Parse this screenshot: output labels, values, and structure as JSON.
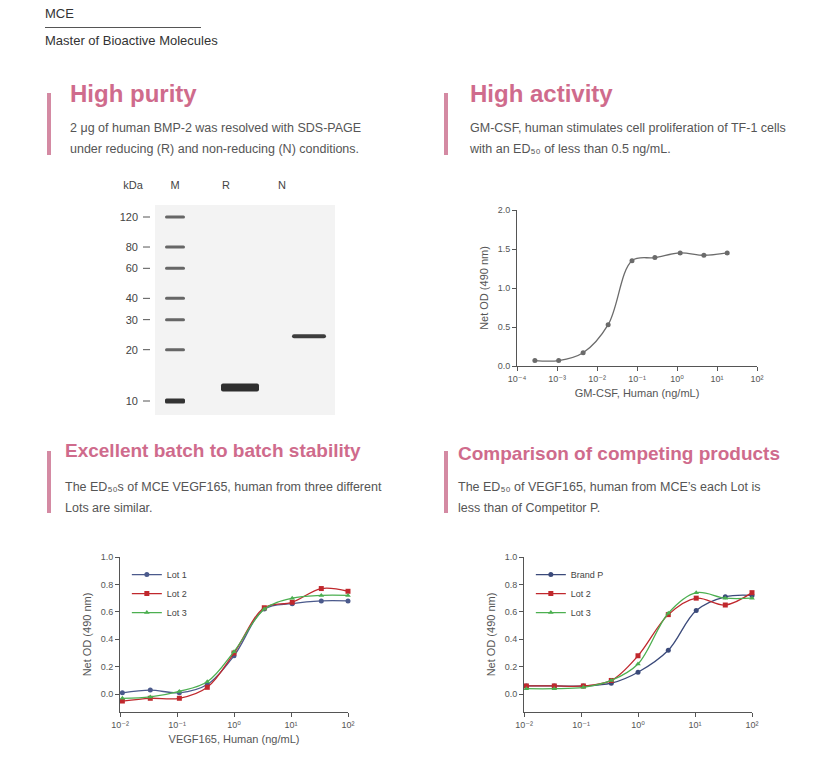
{
  "header": {
    "brand": "MCE",
    "tagline": "Master of Bioactive Molecules"
  },
  "gel_panel": {
    "title": "High purity",
    "subtitle": [
      "2 μg of human BMP-2  was resolved with SDS-PAGE",
      "under reducing (R) and non-reducing (N) conditions."
    ],
    "gel": {
      "axis_label": "kDa",
      "lanes": [
        "M",
        "R",
        "N"
      ],
      "ladder": [
        120,
        80,
        60,
        40,
        30,
        20,
        10
      ],
      "bands": [
        {
          "lane": "R",
          "kDa": 12
        },
        {
          "lane": "N",
          "kDa": 24
        }
      ]
    }
  },
  "chart_data": [
    {
      "type": "line",
      "title": "High activity",
      "subtitle": [
        "GM-CSF, human stimulates cell proliferation of TF-1 cells",
        "with an ED₅₀ of less than 0.5 ng/mL."
      ],
      "x_label": "GM-CSF, Human (ng/mL)",
      "y_label": "Net OD (490 nm)",
      "log": "x",
      "grid": false,
      "xlim": [
        0.0001,
        100
      ],
      "xticks": [
        {
          "value": 0.0001,
          "label": "10⁻⁴"
        },
        {
          "value": 0.001,
          "label": "10⁻³"
        },
        {
          "value": 0.01,
          "label": "10⁻²"
        },
        {
          "value": 0.1,
          "label": "10⁻¹"
        },
        {
          "value": 1,
          "label": "10⁰"
        },
        {
          "value": 10,
          "label": "10¹"
        },
        {
          "value": 100,
          "label": "10²"
        }
      ],
      "ylim": [
        0,
        2
      ],
      "yticks": [
        {
          "value": 0,
          "label": "0.0"
        },
        0.5,
        {
          "value": 1,
          "label": "1.0"
        },
        1.5,
        {
          "value": 2,
          "label": "2.0"
        }
      ],
      "x": [
        0.00028,
        0.0011,
        0.0045,
        0.019,
        0.075,
        0.28,
        1.2,
        4.7,
        18
      ],
      "values": [
        0.07,
        0.07,
        0.17,
        0.53,
        1.35,
        1.39,
        1.45,
        1.42,
        1.45
      ],
      "color": "#6b6b6b",
      "marker": "circle",
      "line_style": "solid"
    },
    {
      "type": "line",
      "title": "Excellent batch to batch stability",
      "subtitle": [
        "The ED₅₀s of MCE VEGF165, human from three different",
        "Lots are similar."
      ],
      "x_label": "VEGF165, Human (ng/mL)",
      "y_label": "Net OD (490 nm)",
      "log": "x",
      "grid": false,
      "legend": "upper left",
      "xlim": [
        0.01,
        100
      ],
      "xticks": [
        {
          "value": 0.01,
          "label": "10⁻²"
        },
        {
          "value": 0.1,
          "label": "10⁻¹"
        },
        {
          "value": 1,
          "label": "10⁰"
        },
        {
          "value": 10,
          "label": "10¹"
        },
        {
          "value": 100,
          "label": "10²"
        }
      ],
      "ylim": [
        -0.13,
        1
      ],
      "yticks": [
        {
          "value": 0,
          "label": "0.0"
        },
        0.2,
        0.4,
        0.6,
        0.8,
        {
          "value": 1,
          "label": "1.0"
        }
      ],
      "x": [
        0.011,
        0.034,
        0.11,
        0.34,
        1.0,
        3.4,
        10.5,
        34,
        100
      ],
      "series": [
        {
          "name": "Lot 1",
          "color": "#4b5a8c",
          "marker": "circle",
          "line_style": "solid",
          "values": [
            0.01,
            0.03,
            0.01,
            0.07,
            0.28,
            0.62,
            0.66,
            0.68,
            0.68
          ]
        },
        {
          "name": "Lot 2",
          "color": "#c0282d",
          "marker": "square",
          "line_style": "solid",
          "values": [
            -0.05,
            -0.03,
            -0.03,
            0.05,
            0.3,
            0.63,
            0.67,
            0.77,
            0.75
          ]
        },
        {
          "name": "Lot 3",
          "color": "#4caf50",
          "marker": "triangle",
          "line_style": "solid",
          "values": [
            -0.03,
            -0.02,
            0.02,
            0.09,
            0.31,
            0.62,
            0.7,
            0.72,
            0.72
          ]
        }
      ]
    },
    {
      "type": "line",
      "title": "Comparison of competing products",
      "subtitle": [
        "The ED₅₀ of VEGF165, human from MCE’s each Lot is",
        "less than of Competitor P."
      ],
      "y_label": "Net OD (490 nm)",
      "log": "x",
      "grid": false,
      "legend": "upper left",
      "xlim": [
        0.01,
        100
      ],
      "xticks": [
        {
          "value": 0.01,
          "label": "10⁻²"
        },
        {
          "value": 0.1,
          "label": "10⁻¹"
        },
        {
          "value": 1,
          "label": "10⁰"
        },
        {
          "value": 10,
          "label": "10¹"
        },
        {
          "value": 100,
          "label": "10²"
        }
      ],
      "ylim": [
        -0.13,
        1
      ],
      "yticks": [
        {
          "value": 0,
          "label": "0.0"
        },
        0.2,
        0.4,
        0.6,
        0.8,
        {
          "value": 1,
          "label": "1.0"
        }
      ],
      "x": [
        0.011,
        0.034,
        0.11,
        0.34,
        1.0,
        3.4,
        10.5,
        34,
        100
      ],
      "series": [
        {
          "name": "Brand P",
          "color": "#3b4a7a",
          "marker": "circle",
          "line_style": "solid",
          "values": [
            0.06,
            0.06,
            0.06,
            0.08,
            0.16,
            0.32,
            0.61,
            0.71,
            0.72
          ]
        },
        {
          "name": "Lot 2",
          "color": "#c0282d",
          "marker": "square",
          "line_style": "solid",
          "values": [
            0.06,
            0.06,
            0.06,
            0.1,
            0.28,
            0.58,
            0.7,
            0.65,
            0.74
          ]
        },
        {
          "name": "Lot 3",
          "color": "#4caf50",
          "marker": "triangle",
          "line_style": "solid",
          "values": [
            0.04,
            0.04,
            0.05,
            0.1,
            0.22,
            0.59,
            0.74,
            0.7,
            0.7
          ]
        }
      ]
    }
  ]
}
